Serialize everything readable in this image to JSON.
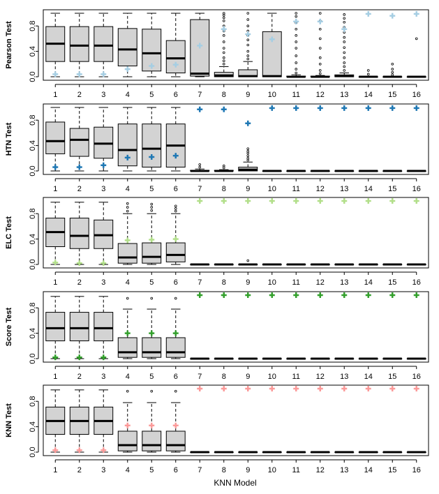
{
  "chart_data": {
    "type": "boxplot",
    "xlabel": "KNN Model",
    "categories": [
      "1",
      "2",
      "3",
      "4",
      "5",
      "6",
      "7",
      "8",
      "9",
      "10",
      "11",
      "12",
      "13",
      "14",
      "15",
      "16"
    ],
    "yticks": [
      "0.0",
      "0.4",
      "0.8"
    ],
    "ylim": [
      0,
      1
    ],
    "panels": [
      {
        "ylabel": "Pearson Test",
        "marker_color": "#a6cee3",
        "boxes": [
          {
            "min": 0.0,
            "q1": 0.24,
            "median": 0.52,
            "q3": 0.79,
            "max": 1.0,
            "outliers": [],
            "marker": 0.04
          },
          {
            "min": 0.0,
            "q1": 0.24,
            "median": 0.49,
            "q3": 0.79,
            "max": 1.0,
            "outliers": [],
            "marker": 0.04
          },
          {
            "min": 0.0,
            "q1": 0.24,
            "median": 0.49,
            "q3": 0.79,
            "max": 1.0,
            "outliers": [],
            "marker": 0.04
          },
          {
            "min": 0.0,
            "q1": 0.17,
            "median": 0.43,
            "q3": 0.76,
            "max": 1.0,
            "outliers": [],
            "marker": 0.12
          },
          {
            "min": 0.0,
            "q1": 0.09,
            "median": 0.37,
            "q3": 0.75,
            "max": 1.0,
            "outliers": [],
            "marker": 0.17
          },
          {
            "min": 0.0,
            "q1": 0.06,
            "median": 0.29,
            "q3": 0.57,
            "max": 1.0,
            "outliers": [],
            "marker": 0.19
          },
          {
            "min": 0.0,
            "q1": 0.01,
            "median": 0.05,
            "q3": 0.9,
            "max": 1.0,
            "outliers": [],
            "marker": 0.49
          },
          {
            "min": 0.0,
            "q1": 0.0,
            "median": 0.02,
            "q3": 0.07,
            "max": 0.16,
            "outliers": [
              0.2,
              0.25,
              0.3,
              0.38,
              0.45,
              0.55,
              0.65,
              0.72,
              0.8,
              0.88,
              0.93,
              0.97,
              1.0
            ],
            "marker": 0.75
          },
          {
            "min": 0.0,
            "q1": 0.0,
            "median": 0.01,
            "q3": 0.11,
            "max": 0.24,
            "outliers": [
              0.28,
              0.33,
              0.4,
              0.5,
              0.58,
              0.65,
              0.72,
              0.8,
              0.9,
              1.0
            ],
            "marker": 0.67
          },
          {
            "min": 0.0,
            "q1": 0.0,
            "median": 0.01,
            "q3": 0.71,
            "max": 1.0,
            "outliers": [],
            "marker": 0.59
          },
          {
            "min": 0.0,
            "q1": 0.0,
            "median": 0.0,
            "q3": 0.01,
            "max": 0.03,
            "outliers": [
              0.06,
              0.12,
              0.22,
              0.33,
              0.45,
              0.55,
              0.65,
              0.75,
              0.85,
              0.95,
              1.0
            ],
            "marker": 0.87
          },
          {
            "min": 0.0,
            "q1": 0.0,
            "median": 0.0,
            "q3": 0.01,
            "max": 0.02,
            "outliers": [
              0.05,
              0.1,
              0.2,
              0.3,
              0.45,
              0.6,
              0.75,
              0.88,
              1.0
            ],
            "marker": 0.87
          },
          {
            "min": 0.0,
            "q1": 0.0,
            "median": 0.01,
            "q3": 0.03,
            "max": 0.06,
            "outliers": [
              0.1,
              0.16,
              0.22,
              0.3,
              0.38,
              0.46,
              0.55,
              0.62,
              0.7,
              0.78,
              0.86,
              0.92,
              0.98
            ],
            "marker": 0.75
          },
          {
            "min": 0.0,
            "q1": 0.0,
            "median": 0.0,
            "q3": 0.0,
            "max": 0.01,
            "outliers": [
              0.04,
              0.1
            ],
            "marker": 0.99
          },
          {
            "min": 0.0,
            "q1": 0.0,
            "median": 0.0,
            "q3": 0.0,
            "max": 0.01,
            "outliers": [
              0.03,
              0.07,
              0.12,
              0.2
            ],
            "marker": 0.96
          },
          {
            "min": 0.0,
            "q1": 0.0,
            "median": 0.0,
            "q3": 0.0,
            "max": 0.0,
            "outliers": [
              0.6
            ],
            "marker": 0.99
          }
        ]
      },
      {
        "ylabel": "HTN Test",
        "marker_color": "#1f78b4",
        "boxes": [
          {
            "min": 0.0,
            "q1": 0.27,
            "median": 0.47,
            "q3": 0.77,
            "max": 1.0,
            "outliers": [],
            "marker": 0.06
          },
          {
            "min": 0.0,
            "q1": 0.23,
            "median": 0.49,
            "q3": 0.67,
            "max": 1.0,
            "outliers": [],
            "marker": 0.06
          },
          {
            "min": 0.0,
            "q1": 0.2,
            "median": 0.43,
            "q3": 0.69,
            "max": 1.0,
            "outliers": [],
            "marker": 0.09
          },
          {
            "min": 0.0,
            "q1": 0.08,
            "median": 0.33,
            "q3": 0.74,
            "max": 1.0,
            "outliers": [],
            "marker": 0.21
          },
          {
            "min": 0.0,
            "q1": 0.06,
            "median": 0.35,
            "q3": 0.74,
            "max": 1.0,
            "outliers": [],
            "marker": 0.22
          },
          {
            "min": 0.0,
            "q1": 0.06,
            "median": 0.4,
            "q3": 0.74,
            "max": 1.0,
            "outliers": [],
            "marker": 0.24
          },
          {
            "min": 0.0,
            "q1": 0.0,
            "median": 0.0,
            "q3": 0.01,
            "max": 0.03,
            "outliers": [
              0.06,
              0.1
            ],
            "marker": 0.97
          },
          {
            "min": 0.0,
            "q1": 0.0,
            "median": 0.0,
            "q3": 0.01,
            "max": 0.02,
            "outliers": [
              0.05,
              0.08
            ],
            "marker": 0.97
          },
          {
            "min": 0.0,
            "q1": 0.0,
            "median": 0.02,
            "q3": 0.06,
            "max": 0.14,
            "outliers": [
              0.17,
              0.2,
              0.24,
              0.28,
              0.31,
              0.35
            ],
            "marker": 0.75
          },
          {
            "min": 0.0,
            "q1": 0.0,
            "median": 0.0,
            "q3": 0.0,
            "max": 0.0,
            "outliers": [],
            "marker": 0.99
          },
          {
            "min": 0.0,
            "q1": 0.0,
            "median": 0.0,
            "q3": 0.0,
            "max": 0.0,
            "outliers": [],
            "marker": 0.99
          },
          {
            "min": 0.0,
            "q1": 0.0,
            "median": 0.0,
            "q3": 0.0,
            "max": 0.01,
            "outliers": [],
            "marker": 0.99
          },
          {
            "min": 0.0,
            "q1": 0.0,
            "median": 0.0,
            "q3": 0.0,
            "max": 0.0,
            "outliers": [],
            "marker": 0.99
          },
          {
            "min": 0.0,
            "q1": 0.0,
            "median": 0.0,
            "q3": 0.0,
            "max": 0.0,
            "outliers": [],
            "marker": 0.99
          },
          {
            "min": 0.0,
            "q1": 0.0,
            "median": 0.0,
            "q3": 0.0,
            "max": 0.0,
            "outliers": [],
            "marker": 0.99
          },
          {
            "min": 0.0,
            "q1": 0.0,
            "median": 0.0,
            "q3": 0.0,
            "max": 0.0,
            "outliers": [],
            "marker": 0.99
          }
        ]
      },
      {
        "ylabel": "ELC Test",
        "marker_color": "#b2df8a",
        "boxes": [
          {
            "min": 0.0,
            "q1": 0.28,
            "median": 0.51,
            "q3": 0.73,
            "max": 0.98,
            "outliers": [],
            "marker": 0.03
          },
          {
            "min": 0.0,
            "q1": 0.25,
            "median": 0.45,
            "q3": 0.73,
            "max": 0.98,
            "outliers": [],
            "marker": 0.02
          },
          {
            "min": 0.0,
            "q1": 0.25,
            "median": 0.46,
            "q3": 0.7,
            "max": 0.98,
            "outliers": [],
            "marker": 0.02
          },
          {
            "min": 0.0,
            "q1": 0.02,
            "median": 0.11,
            "q3": 0.33,
            "max": 0.8,
            "outliers": [
              0.84,
              0.9,
              0.96
            ],
            "marker": 0.38
          },
          {
            "min": 0.0,
            "q1": 0.02,
            "median": 0.12,
            "q3": 0.34,
            "max": 0.8,
            "outliers": [
              0.85,
              0.9,
              0.95
            ],
            "marker": 0.39
          },
          {
            "min": 0.0,
            "q1": 0.04,
            "median": 0.15,
            "q3": 0.34,
            "max": 0.8,
            "outliers": [
              0.84,
              0.88,
              0.92
            ],
            "marker": 0.4
          },
          {
            "min": 0.0,
            "q1": 0.0,
            "median": 0.0,
            "q3": 0.0,
            "max": 0.0,
            "outliers": [],
            "marker": 1.0
          },
          {
            "min": 0.0,
            "q1": 0.0,
            "median": 0.0,
            "q3": 0.0,
            "max": 0.0,
            "outliers": [],
            "marker": 1.0
          },
          {
            "min": 0.0,
            "q1": 0.0,
            "median": 0.0,
            "q3": 0.0,
            "max": 0.01,
            "outliers": [
              0.06
            ],
            "marker": 1.0
          },
          {
            "min": 0.0,
            "q1": 0.0,
            "median": 0.0,
            "q3": 0.0,
            "max": 0.0,
            "outliers": [],
            "marker": 1.0
          },
          {
            "min": 0.0,
            "q1": 0.0,
            "median": 0.0,
            "q3": 0.0,
            "max": 0.0,
            "outliers": [],
            "marker": 1.0
          },
          {
            "min": 0.0,
            "q1": 0.0,
            "median": 0.0,
            "q3": 0.0,
            "max": 0.0,
            "outliers": [],
            "marker": 1.0
          },
          {
            "min": 0.0,
            "q1": 0.0,
            "median": 0.0,
            "q3": 0.0,
            "max": 0.0,
            "outliers": [],
            "marker": 1.0
          },
          {
            "min": 0.0,
            "q1": 0.0,
            "median": 0.0,
            "q3": 0.0,
            "max": 0.0,
            "outliers": [],
            "marker": 1.0
          },
          {
            "min": 0.0,
            "q1": 0.0,
            "median": 0.0,
            "q3": 0.0,
            "max": 0.0,
            "outliers": [],
            "marker": 1.0
          },
          {
            "min": 0.0,
            "q1": 0.0,
            "median": 0.0,
            "q3": 0.0,
            "max": 0.0,
            "outliers": [],
            "marker": 1.0
          }
        ]
      },
      {
        "ylabel": "Score Test",
        "marker_color": "#33a02c",
        "boxes": [
          {
            "min": 0.0,
            "q1": 0.28,
            "median": 0.48,
            "q3": 0.73,
            "max": 0.98,
            "outliers": [],
            "marker": 0.02
          },
          {
            "min": 0.0,
            "q1": 0.28,
            "median": 0.48,
            "q3": 0.73,
            "max": 0.98,
            "outliers": [],
            "marker": 0.02
          },
          {
            "min": 0.0,
            "q1": 0.28,
            "median": 0.48,
            "q3": 0.73,
            "max": 0.98,
            "outliers": [],
            "marker": 0.02
          },
          {
            "min": 0.0,
            "q1": 0.02,
            "median": 0.1,
            "q3": 0.33,
            "max": 0.78,
            "outliers": [
              0.95
            ],
            "marker": 0.4
          },
          {
            "min": 0.0,
            "q1": 0.02,
            "median": 0.1,
            "q3": 0.33,
            "max": 0.78,
            "outliers": [
              0.95
            ],
            "marker": 0.4
          },
          {
            "min": 0.0,
            "q1": 0.02,
            "median": 0.1,
            "q3": 0.33,
            "max": 0.78,
            "outliers": [
              0.95
            ],
            "marker": 0.4
          },
          {
            "min": 0.0,
            "q1": 0.0,
            "median": 0.0,
            "q3": 0.0,
            "max": 0.0,
            "outliers": [],
            "marker": 1.0
          },
          {
            "min": 0.0,
            "q1": 0.0,
            "median": 0.0,
            "q3": 0.0,
            "max": 0.0,
            "outliers": [],
            "marker": 1.0
          },
          {
            "min": 0.0,
            "q1": 0.0,
            "median": 0.0,
            "q3": 0.0,
            "max": 0.0,
            "outliers": [],
            "marker": 1.0
          },
          {
            "min": 0.0,
            "q1": 0.0,
            "median": 0.0,
            "q3": 0.0,
            "max": 0.0,
            "outliers": [],
            "marker": 1.0
          },
          {
            "min": 0.0,
            "q1": 0.0,
            "median": 0.0,
            "q3": 0.0,
            "max": 0.0,
            "outliers": [],
            "marker": 1.0
          },
          {
            "min": 0.0,
            "q1": 0.0,
            "median": 0.0,
            "q3": 0.0,
            "max": 0.0,
            "outliers": [],
            "marker": 1.0
          },
          {
            "min": 0.0,
            "q1": 0.0,
            "median": 0.0,
            "q3": 0.0,
            "max": 0.0,
            "outliers": [],
            "marker": 1.0
          },
          {
            "min": 0.0,
            "q1": 0.0,
            "median": 0.0,
            "q3": 0.0,
            "max": 0.0,
            "outliers": [],
            "marker": 1.0
          },
          {
            "min": 0.0,
            "q1": 0.0,
            "median": 0.0,
            "q3": 0.0,
            "max": 0.0,
            "outliers": [],
            "marker": 1.0
          },
          {
            "min": 0.0,
            "q1": 0.0,
            "median": 0.0,
            "q3": 0.0,
            "max": 0.0,
            "outliers": [],
            "marker": 1.0
          }
        ]
      },
      {
        "ylabel": "KNN Test",
        "marker_color": "#fb9a99",
        "boxes": [
          {
            "min": 0.0,
            "q1": 0.28,
            "median": 0.49,
            "q3": 0.71,
            "max": 0.98,
            "outliers": [],
            "marker": 0.03
          },
          {
            "min": 0.0,
            "q1": 0.28,
            "median": 0.49,
            "q3": 0.71,
            "max": 0.98,
            "outliers": [],
            "marker": 0.03
          },
          {
            "min": 0.0,
            "q1": 0.28,
            "median": 0.49,
            "q3": 0.71,
            "max": 0.98,
            "outliers": [],
            "marker": 0.03
          },
          {
            "min": 0.0,
            "q1": 0.02,
            "median": 0.11,
            "q3": 0.33,
            "max": 0.78,
            "outliers": [
              0.96
            ],
            "marker": 0.42
          },
          {
            "min": 0.0,
            "q1": 0.02,
            "median": 0.11,
            "q3": 0.33,
            "max": 0.78,
            "outliers": [
              0.96
            ],
            "marker": 0.42
          },
          {
            "min": 0.0,
            "q1": 0.02,
            "median": 0.11,
            "q3": 0.33,
            "max": 0.78,
            "outliers": [
              0.96
            ],
            "marker": 0.42
          },
          {
            "min": 0.0,
            "q1": 0.0,
            "median": 0.0,
            "q3": 0.0,
            "max": 0.0,
            "outliers": [],
            "marker": 1.0
          },
          {
            "min": 0.0,
            "q1": 0.0,
            "median": 0.0,
            "q3": 0.0,
            "max": 0.0,
            "outliers": [],
            "marker": 1.0
          },
          {
            "min": 0.0,
            "q1": 0.0,
            "median": 0.0,
            "q3": 0.0,
            "max": 0.0,
            "outliers": [],
            "marker": 1.0
          },
          {
            "min": 0.0,
            "q1": 0.0,
            "median": 0.0,
            "q3": 0.0,
            "max": 0.0,
            "outliers": [],
            "marker": 1.0
          },
          {
            "min": 0.0,
            "q1": 0.0,
            "median": 0.0,
            "q3": 0.0,
            "max": 0.0,
            "outliers": [],
            "marker": 1.0
          },
          {
            "min": 0.0,
            "q1": 0.0,
            "median": 0.0,
            "q3": 0.0,
            "max": 0.0,
            "outliers": [],
            "marker": 1.0
          },
          {
            "min": 0.0,
            "q1": 0.0,
            "median": 0.0,
            "q3": 0.0,
            "max": 0.0,
            "outliers": [],
            "marker": 1.0
          },
          {
            "min": 0.0,
            "q1": 0.0,
            "median": 0.0,
            "q3": 0.0,
            "max": 0.0,
            "outliers": [],
            "marker": 1.0
          },
          {
            "min": 0.0,
            "q1": 0.0,
            "median": 0.0,
            "q3": 0.0,
            "max": 0.0,
            "outliers": [],
            "marker": 1.0
          },
          {
            "min": 0.0,
            "q1": 0.0,
            "median": 0.0,
            "q3": 0.0,
            "max": 0.0,
            "outliers": [],
            "marker": 1.0
          }
        ]
      }
    ]
  }
}
